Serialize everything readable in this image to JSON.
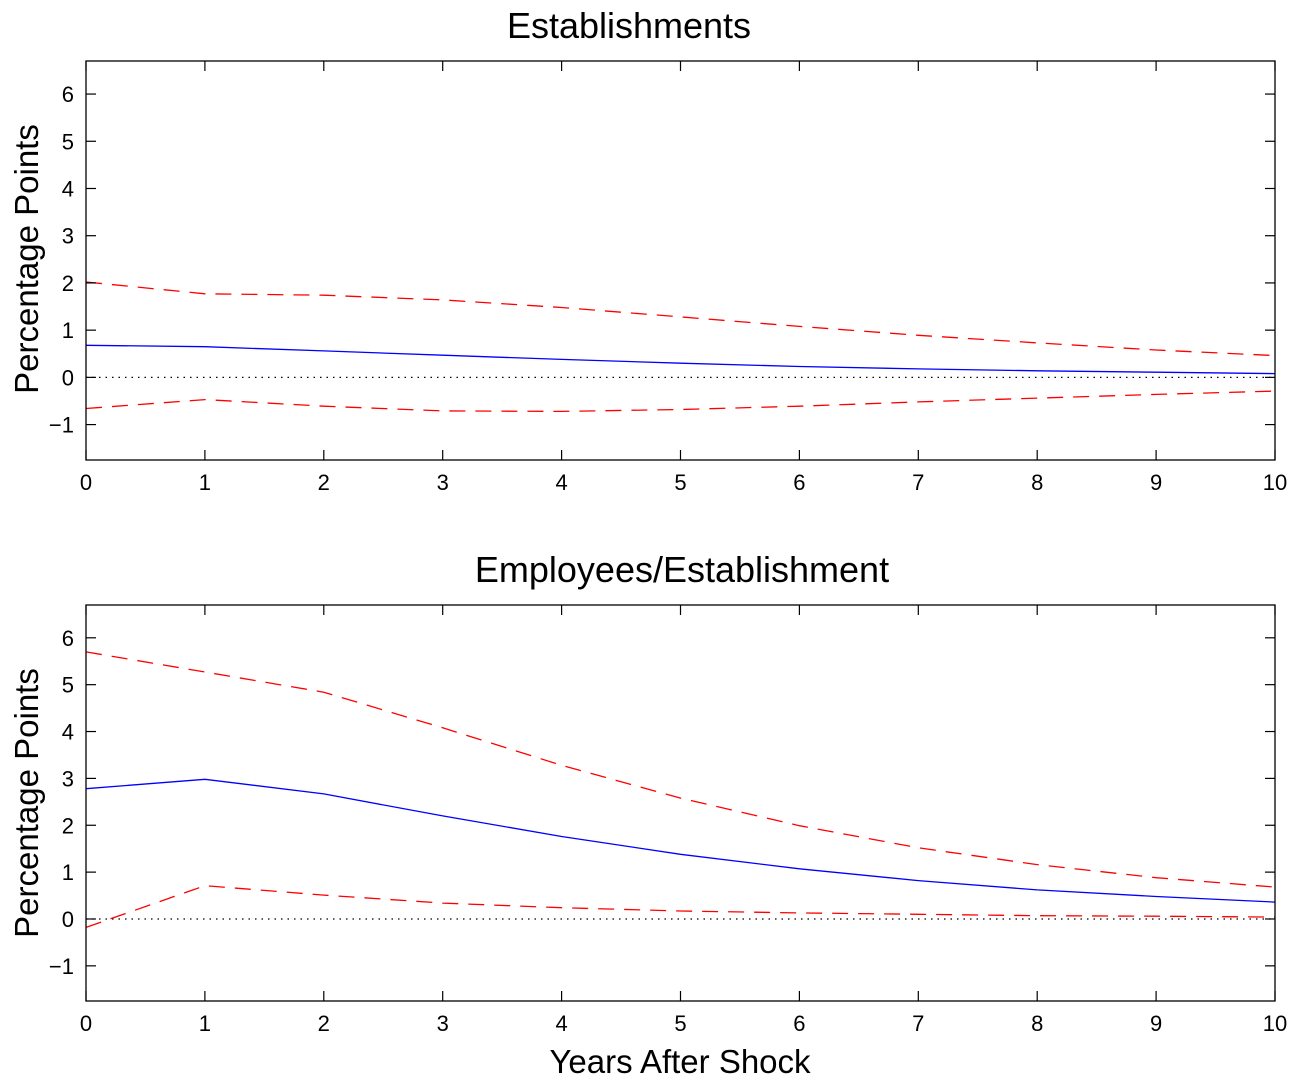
{
  "figure": {
    "xlabel": "Years After Shock"
  },
  "chart_data": [
    {
      "type": "line",
      "title": "Establishments",
      "xlabel": "",
      "ylabel": "Percentage Points",
      "x": [
        0,
        1,
        2,
        3,
        4,
        5,
        6,
        7,
        8,
        9,
        10
      ],
      "xlim": [
        0,
        10
      ],
      "ylim": [
        -1.75,
        6.7
      ],
      "xticks": [
        "0",
        "1",
        "2",
        "3",
        "4",
        "5",
        "6",
        "7",
        "8",
        "9",
        "10"
      ],
      "yticks": [
        -1,
        0,
        1,
        2,
        3,
        4,
        5,
        6
      ],
      "ytick_labels": [
        "−1",
        "0",
        "1",
        "2",
        "3",
        "4",
        "5",
        "6"
      ],
      "grid": false,
      "zero_line": {
        "style": "dotted",
        "color": "#000000"
      },
      "series": [
        {
          "role": "estimate",
          "style": "solid",
          "color": "#0000ff",
          "values": [
            0.68,
            0.65,
            0.56,
            0.47,
            0.38,
            0.3,
            0.23,
            0.18,
            0.14,
            0.11,
            0.08
          ]
        },
        {
          "role": "upper-bound",
          "style": "dashed",
          "color": "#ff0000",
          "values": [
            2.02,
            1.77,
            1.74,
            1.64,
            1.48,
            1.28,
            1.08,
            0.89,
            0.73,
            0.58,
            0.46
          ]
        },
        {
          "role": "lower-bound",
          "style": "dashed",
          "color": "#ff0000",
          "values": [
            -0.66,
            -0.47,
            -0.61,
            -0.71,
            -0.72,
            -0.68,
            -0.61,
            -0.52,
            -0.44,
            -0.36,
            -0.29
          ]
        }
      ]
    },
    {
      "type": "line",
      "title": "Employees/Establishment",
      "xlabel": "Years After Shock",
      "ylabel": "Percentage Points",
      "x": [
        0,
        1,
        2,
        3,
        4,
        5,
        6,
        7,
        8,
        9,
        10
      ],
      "xlim": [
        0,
        10
      ],
      "ylim": [
        -1.75,
        6.7
      ],
      "xticks": [
        "0",
        "1",
        "2",
        "3",
        "4",
        "5",
        "6",
        "7",
        "8",
        "9",
        "10"
      ],
      "yticks": [
        -1,
        0,
        1,
        2,
        3,
        4,
        5,
        6
      ],
      "ytick_labels": [
        "−1",
        "0",
        "1",
        "2",
        "3",
        "4",
        "5",
        "6"
      ],
      "grid": false,
      "zero_line": {
        "style": "dotted",
        "color": "#000000"
      },
      "series": [
        {
          "role": "estimate",
          "style": "solid",
          "color": "#0000ff",
          "values": [
            2.78,
            2.98,
            2.67,
            2.2,
            1.76,
            1.38,
            1.07,
            0.82,
            0.62,
            0.48,
            0.36
          ]
        },
        {
          "role": "upper-bound",
          "style": "dashed",
          "color": "#ff0000",
          "values": [
            5.7,
            5.27,
            4.84,
            4.08,
            3.28,
            2.58,
            1.99,
            1.52,
            1.16,
            0.88,
            0.68
          ]
        },
        {
          "role": "lower-bound",
          "style": "dashed",
          "color": "#ff0000",
          "values": [
            -0.18,
            0.71,
            0.51,
            0.34,
            0.24,
            0.17,
            0.13,
            0.1,
            0.07,
            0.06,
            0.04
          ]
        }
      ]
    }
  ]
}
